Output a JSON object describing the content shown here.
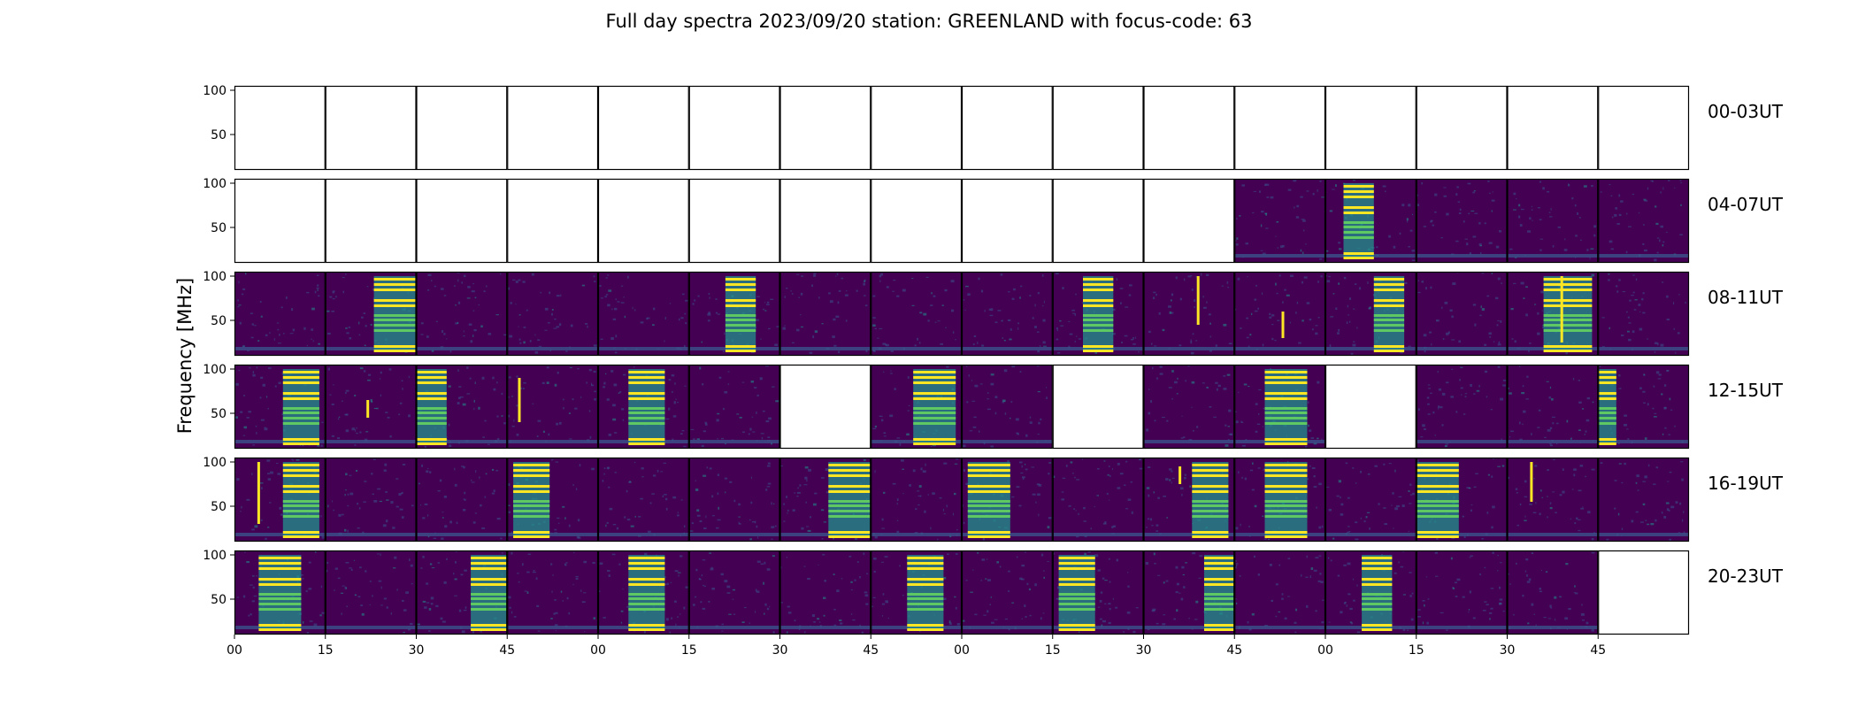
{
  "chart_data": {
    "type": "heatmap",
    "title": "Full day spectra 2023/09/20 station: GREENLAND with focus-code: 63",
    "ylabel": "Frequency [MHz]",
    "xlabel": "",
    "ylim": [
      10,
      105
    ],
    "y_ticks": [
      "50",
      "100"
    ],
    "x_tick_labels": [
      "00",
      "15",
      "30",
      "45",
      "00",
      "15",
      "30",
      "45",
      "00",
      "15",
      "30",
      "45",
      "00",
      "15",
      "30",
      "45"
    ],
    "panels_per_row": 16,
    "panel_minutes": 15,
    "colormap": [
      "#440154",
      "#3b528b",
      "#21918c",
      "#5ec962",
      "#fde725"
    ],
    "rows": [
      {
        "label": "00-03UT",
        "panels": [
          "empty",
          "empty",
          "empty",
          "empty",
          "empty",
          "empty",
          "empty",
          "empty",
          "empty",
          "empty",
          "empty",
          "empty",
          "empty",
          "empty",
          "empty",
          "empty"
        ]
      },
      {
        "label": "04-07UT",
        "panels": [
          "empty",
          "empty",
          "empty",
          "empty",
          "empty",
          "empty",
          "empty",
          "empty",
          "empty",
          "empty",
          "empty",
          "data",
          "data",
          "data",
          "data",
          "data"
        ]
      },
      {
        "label": "08-11UT",
        "panels": [
          "data",
          "data",
          "data",
          "data",
          "data",
          "data",
          "data",
          "data",
          "data",
          "data",
          "data",
          "data",
          "data",
          "data",
          "data",
          "data"
        ]
      },
      {
        "label": "12-15UT",
        "panels": [
          "data",
          "data",
          "data",
          "data",
          "data",
          "data",
          "empty",
          "data",
          "data",
          "empty",
          "data",
          "data",
          "empty",
          "data",
          "data",
          "data"
        ]
      },
      {
        "label": "16-19UT",
        "panels": [
          "data",
          "data",
          "data",
          "data",
          "data",
          "data",
          "data",
          "data",
          "data",
          "data",
          "data",
          "data",
          "data",
          "data",
          "data",
          "data"
        ]
      },
      {
        "label": "20-23UT",
        "panels": [
          "data",
          "data",
          "data",
          "data",
          "data",
          "data",
          "data",
          "data",
          "data",
          "data",
          "data",
          "data",
          "data",
          "data",
          "data",
          "empty"
        ]
      }
    ],
    "bursts": [
      {
        "row": 1,
        "panel": 12,
        "minute_from": 3,
        "minute_to": 8
      },
      {
        "row": 2,
        "panel": 1,
        "minute_from": 8,
        "minute_to": 15
      },
      {
        "row": 2,
        "panel": 5,
        "minute_from": 6,
        "minute_to": 11
      },
      {
        "row": 2,
        "panel": 9,
        "minute_from": 5,
        "minute_to": 10
      },
      {
        "row": 2,
        "panel": 12,
        "minute_from": 8,
        "minute_to": 13
      },
      {
        "row": 2,
        "panel": 14,
        "minute_from": 6,
        "minute_to": 14
      },
      {
        "row": 3,
        "panel": 0,
        "minute_from": 8,
        "minute_to": 14
      },
      {
        "row": 3,
        "panel": 2,
        "minute_from": 0,
        "minute_to": 5
      },
      {
        "row": 3,
        "panel": 4,
        "minute_from": 5,
        "minute_to": 11
      },
      {
        "row": 3,
        "panel": 7,
        "minute_from": 7,
        "minute_to": 14
      },
      {
        "row": 3,
        "panel": 11,
        "minute_from": 5,
        "minute_to": 12
      },
      {
        "row": 3,
        "panel": 15,
        "minute_from": 0,
        "minute_to": 3
      },
      {
        "row": 4,
        "panel": 0,
        "minute_from": 8,
        "minute_to": 14
      },
      {
        "row": 4,
        "panel": 3,
        "minute_from": 1,
        "minute_to": 7
      },
      {
        "row": 4,
        "panel": 6,
        "minute_from": 8,
        "minute_to": 15
      },
      {
        "row": 4,
        "panel": 8,
        "minute_from": 1,
        "minute_to": 8
      },
      {
        "row": 4,
        "panel": 10,
        "minute_from": 8,
        "minute_to": 14
      },
      {
        "row": 4,
        "panel": 11,
        "minute_from": 5,
        "minute_to": 12
      },
      {
        "row": 4,
        "panel": 13,
        "minute_from": 0,
        "minute_to": 7
      },
      {
        "row": 5,
        "panel": 0,
        "minute_from": 4,
        "minute_to": 11
      },
      {
        "row": 5,
        "panel": 2,
        "minute_from": 9,
        "minute_to": 15
      },
      {
        "row": 5,
        "panel": 4,
        "minute_from": 5,
        "minute_to": 11
      },
      {
        "row": 5,
        "panel": 7,
        "minute_from": 6,
        "minute_to": 12
      },
      {
        "row": 5,
        "panel": 9,
        "minute_from": 1,
        "minute_to": 7
      },
      {
        "row": 5,
        "panel": 10,
        "minute_from": 10,
        "minute_to": 15
      },
      {
        "row": 5,
        "panel": 12,
        "minute_from": 6,
        "minute_to": 11
      }
    ],
    "spikes": [
      {
        "row": 2,
        "panel": 10,
        "minute": 9,
        "freq_from": 45,
        "freq_to": 100
      },
      {
        "row": 2,
        "panel": 11,
        "minute": 8,
        "freq_from": 30,
        "freq_to": 60
      },
      {
        "row": 2,
        "panel": 14,
        "minute": 9,
        "freq_from": 25,
        "freq_to": 100
      },
      {
        "row": 3,
        "panel": 1,
        "minute": 7,
        "freq_from": 45,
        "freq_to": 65
      },
      {
        "row": 3,
        "panel": 3,
        "minute": 2,
        "freq_from": 40,
        "freq_to": 90
      },
      {
        "row": 4,
        "panel": 0,
        "minute": 4,
        "freq_from": 30,
        "freq_to": 100
      },
      {
        "row": 4,
        "panel": 10,
        "minute": 6,
        "freq_from": 75,
        "freq_to": 95
      },
      {
        "row": 4,
        "panel": 14,
        "minute": 4,
        "freq_from": 55,
        "freq_to": 100
      }
    ]
  }
}
